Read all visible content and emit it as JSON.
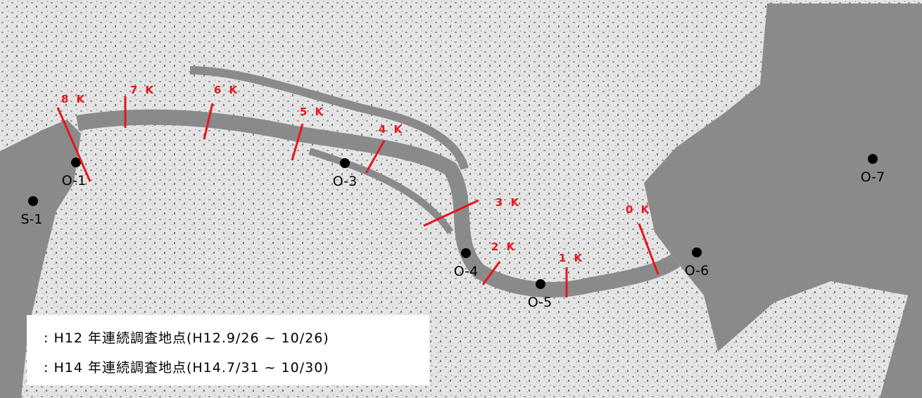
{
  "stations": [
    "S-1",
    "O-1",
    "O-3",
    "O-4",
    "O-5",
    "O-6",
    "O-7"
  ],
  "distance_markers": [
    "8 K",
    "7 K",
    "6 K",
    "5 K",
    "4 K",
    "3 K",
    "2 K",
    "1 K",
    "0 K"
  ],
  "legend": [
    ": H12 年連続調査地点(H12.9/26 ~ 10/26)",
    ": H14 年連続調査地点(H14.7/31 ~ 10/30)"
  ]
}
